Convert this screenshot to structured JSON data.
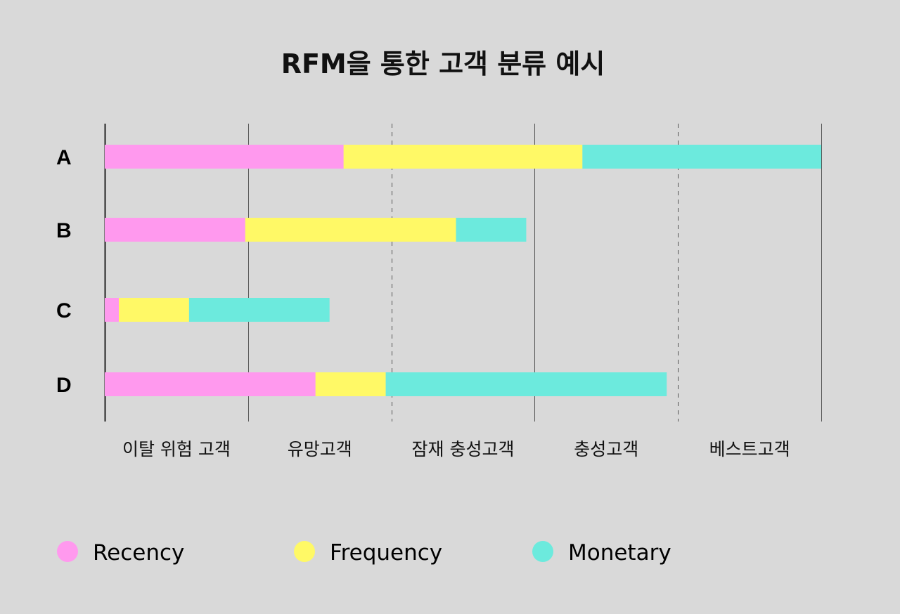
{
  "chart_data": {
    "type": "bar",
    "orientation": "horizontal",
    "stacked": true,
    "title": "RFM을 통한 고객 분류 예시",
    "rows": [
      "A",
      "B",
      "C",
      "D"
    ],
    "series": [
      {
        "name": "Recency",
        "color": "#ff99ee",
        "values": [
          17,
          10,
          1,
          15
        ]
      },
      {
        "name": "Frequency",
        "color": "#fff966",
        "values": [
          17,
          15,
          5,
          5
        ]
      },
      {
        "name": "Monetary",
        "color": "#6ceadd",
        "values": [
          17,
          5,
          10,
          20
        ]
      }
    ],
    "xlim": [
      0,
      51
    ],
    "segments": [
      {
        "label": "이탈 위험 고객"
      },
      {
        "label": "유망고객"
      },
      {
        "label": "잠재 충성고객"
      },
      {
        "label": "충성고객"
      },
      {
        "label": "베스트고객"
      }
    ],
    "grid_lines": [
      {
        "value": 0,
        "style": "solid"
      },
      {
        "value": 10.2,
        "style": "solid"
      },
      {
        "value": 20.4,
        "style": "dashed"
      },
      {
        "value": 30.6,
        "style": "solid"
      },
      {
        "value": 40.8,
        "style": "dashed"
      },
      {
        "value": 51,
        "style": "solid"
      }
    ],
    "legend": {
      "placement": "bottom-left"
    }
  }
}
